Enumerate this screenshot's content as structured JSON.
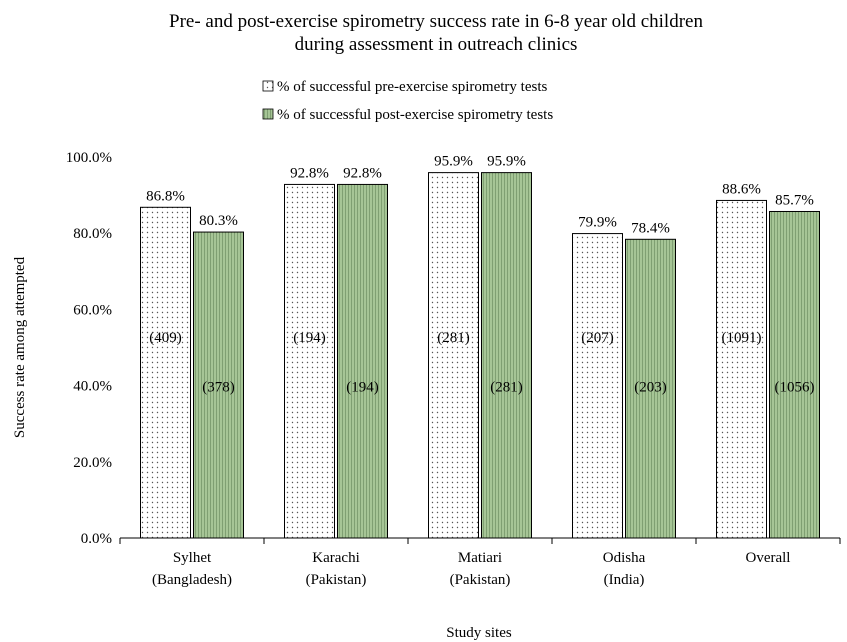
{
  "chart_data": {
    "type": "bar",
    "title": [
      "Pre- and post-exercise spirometry success rate in 6-8 year old children",
      "during assessment in outreach clinics"
    ],
    "xlabel": "Study sites",
    "ylabel": "Success rate among attempted",
    "ylim": [
      0,
      100
    ],
    "yticks": [
      0,
      20,
      40,
      60,
      80,
      100
    ],
    "ytick_labels": [
      "0.0%",
      "20.0%",
      "40.0%",
      "60.0%",
      "80.0%",
      "100.0%"
    ],
    "legend_position": "top",
    "categories": [
      [
        "Sylhet",
        "(Bangladesh)"
      ],
      [
        "Karachi",
        "(Pakistan)"
      ],
      [
        "Matiari",
        "(Pakistan)"
      ],
      [
        "Odisha",
        "(India)"
      ],
      [
        "Overall"
      ]
    ],
    "series": [
      {
        "name": "% of successful pre-exercise spirometry tests",
        "values": [
          86.8,
          92.8,
          95.9,
          79.9,
          88.6
        ],
        "value_labels": [
          "86.8%",
          "92.8%",
          "95.9%",
          "79.9%",
          "88.6%"
        ],
        "counts": [
          "(409)",
          "(194)",
          "(281)",
          "(207)",
          "(1091)"
        ],
        "fill": "#ffffff",
        "pattern": "dots"
      },
      {
        "name": "% of successful post-exercise spirometry tests",
        "values": [
          80.3,
          92.8,
          95.9,
          78.4,
          85.7
        ],
        "value_labels": [
          "80.3%",
          "92.8%",
          "95.9%",
          "78.4%",
          "85.7%"
        ],
        "counts": [
          "(378)",
          "(194)",
          "(281)",
          "(203)",
          "(1056)"
        ],
        "fill": "#a6c596",
        "pattern": "vertical-lines"
      }
    ]
  }
}
